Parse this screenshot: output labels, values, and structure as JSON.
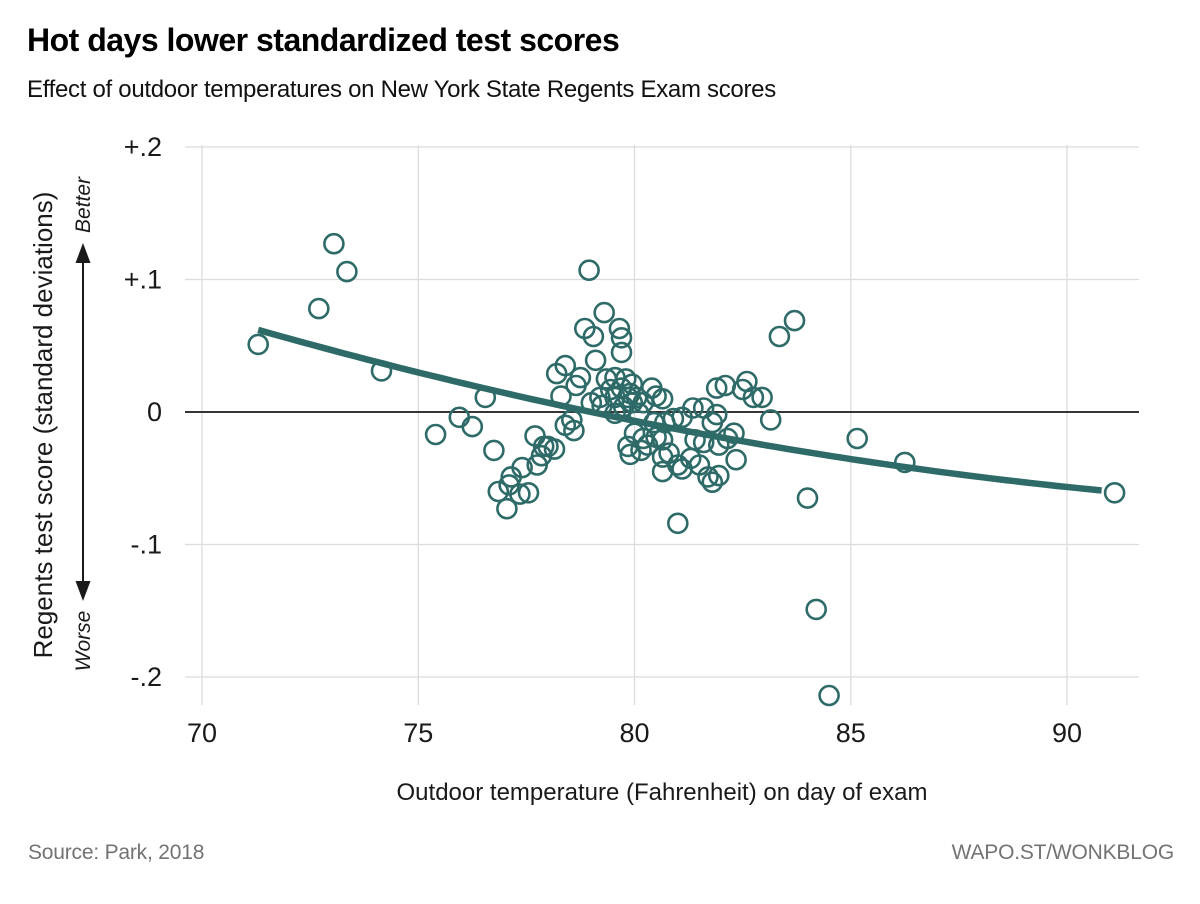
{
  "header": {
    "title": "Hot days lower standardized test scores",
    "subtitle": "Effect of outdoor temperatures on New York State Regents Exam scores"
  },
  "footer": {
    "source": "Source: Park, 2018",
    "credit": "WAPO.ST/WONKBLOG"
  },
  "chart_data": {
    "type": "scatter",
    "title": "Hot days lower standardized test scores",
    "subtitle": "Effect of outdoor temperatures on New York State Regents Exam scores",
    "xlabel": "Outdoor temperature (Fahrenheit) on day of exam",
    "ylabel": "Regents test score (standard deviations)",
    "y_direction_labels": {
      "up": "Better",
      "down": "Worse"
    },
    "x_ticks": [
      70,
      75,
      80,
      85,
      90
    ],
    "y_ticks": [
      {
        "value": 0.2,
        "label": "+.2"
      },
      {
        "value": 0.1,
        "label": "+.1"
      },
      {
        "value": 0,
        "label": "0"
      },
      {
        "value": -0.1,
        "label": "-.1"
      },
      {
        "value": -0.2,
        "label": "-.2"
      }
    ],
    "xlim": [
      69.6,
      91.7
    ],
    "ylim": [
      -0.225,
      0.2
    ],
    "grid": true,
    "zero_line": true,
    "legend": "none",
    "points": [
      [
        73.05,
        0.127
      ],
      [
        73.35,
        0.106
      ],
      [
        72.7,
        0.078
      ],
      [
        71.3,
        0.051
      ],
      [
        74.15,
        0.031
      ],
      [
        76.55,
        0.011
      ],
      [
        75.95,
        -0.004
      ],
      [
        75.4,
        -0.017
      ],
      [
        76.25,
        -0.011
      ],
      [
        76.75,
        -0.029
      ],
      [
        77.4,
        -0.042
      ],
      [
        77.1,
        -0.055
      ],
      [
        77.15,
        -0.049
      ],
      [
        77.35,
        -0.062
      ],
      [
        77.55,
        -0.061
      ],
      [
        77.05,
        -0.073
      ],
      [
        76.85,
        -0.06
      ],
      [
        77.7,
        -0.018
      ],
      [
        77.9,
        -0.026
      ],
      [
        78.0,
        -0.026
      ],
      [
        78.15,
        -0.028
      ],
      [
        77.85,
        -0.033
      ],
      [
        77.75,
        -0.04
      ],
      [
        78.6,
        -0.014
      ],
      [
        78.95,
        0.107
      ],
      [
        79.3,
        0.075
      ],
      [
        78.85,
        0.063
      ],
      [
        79.05,
        0.057
      ],
      [
        79.65,
        0.063
      ],
      [
        79.7,
        0.056
      ],
      [
        79.7,
        0.045
      ],
      [
        79.1,
        0.039
      ],
      [
        78.4,
        0.035
      ],
      [
        78.2,
        0.029
      ],
      [
        78.75,
        0.026
      ],
      [
        78.65,
        0.02
      ],
      [
        78.3,
        0.012
      ],
      [
        79.35,
        0.025
      ],
      [
        79.55,
        0.026
      ],
      [
        79.8,
        0.025
      ],
      [
        79.95,
        0.021
      ],
      [
        79.7,
        0.018
      ],
      [
        79.45,
        0.017
      ],
      [
        79.2,
        0.011
      ],
      [
        79.55,
        0.011
      ],
      [
        79.85,
        0.011
      ],
      [
        80.05,
        0.011
      ],
      [
        80.4,
        0.018
      ],
      [
        80.5,
        0.012
      ],
      [
        80.65,
        0.01
      ],
      [
        80.2,
        0.007
      ],
      [
        79.75,
        0.004
      ],
      [
        79.25,
        0.005
      ],
      [
        79.0,
        0.007
      ],
      [
        81.9,
        0.018
      ],
      [
        79.9,
        0.014
      ],
      [
        79.95,
        0.007
      ],
      [
        78.55,
        -0.006
      ],
      [
        78.4,
        -0.01
      ],
      [
        79.55,
        -0.001
      ],
      [
        80.1,
        -0.001
      ],
      [
        80.45,
        -0.008
      ],
      [
        80.7,
        -0.008
      ],
      [
        80.9,
        -0.005
      ],
      [
        81.1,
        -0.004
      ],
      [
        81.35,
        0.003
      ],
      [
        81.6,
        0.003
      ],
      [
        81.9,
        -0.002
      ],
      [
        81.8,
        -0.008
      ],
      [
        80.0,
        -0.016
      ],
      [
        80.2,
        -0.02
      ],
      [
        80.5,
        -0.019
      ],
      [
        80.65,
        -0.021
      ],
      [
        81.4,
        -0.021
      ],
      [
        81.6,
        -0.023
      ],
      [
        79.85,
        -0.026
      ],
      [
        79.9,
        -0.032
      ],
      [
        80.15,
        -0.029
      ],
      [
        80.3,
        -0.025
      ],
      [
        80.65,
        -0.034
      ],
      [
        80.65,
        -0.045
      ],
      [
        80.8,
        -0.031
      ],
      [
        81.0,
        -0.04
      ],
      [
        81.1,
        -0.043
      ],
      [
        81.3,
        -0.035
      ],
      [
        81.5,
        -0.04
      ],
      [
        81.7,
        -0.049
      ],
      [
        81.8,
        -0.053
      ],
      [
        81.95,
        -0.048
      ],
      [
        81.0,
        -0.084
      ],
      [
        81.95,
        -0.025
      ],
      [
        82.15,
        -0.02
      ],
      [
        82.3,
        -0.016
      ],
      [
        82.35,
        -0.036
      ],
      [
        82.1,
        0.02
      ],
      [
        82.6,
        0.023
      ],
      [
        82.5,
        0.017
      ],
      [
        82.75,
        0.011
      ],
      [
        82.95,
        0.011
      ],
      [
        83.15,
        -0.006
      ],
      [
        83.35,
        0.057
      ],
      [
        83.7,
        0.069
      ],
      [
        84.0,
        -0.065
      ],
      [
        84.2,
        -0.149
      ],
      [
        84.5,
        -0.214
      ],
      [
        85.15,
        -0.02
      ],
      [
        86.25,
        -0.038
      ],
      [
        91.1,
        -0.061
      ]
    ],
    "trend": {
      "type": "quadratic",
      "description": "fitted curve of test score vs temperature",
      "coef_t2": 0.000155,
      "coef_t": -0.03134,
      "intercept": 1.5085,
      "t_min": 71.3,
      "t_max": 91.0
    },
    "colors": {
      "accent_teal": "#2e6b68",
      "grid": "#dcdcdc",
      "zero_line": "#1a1a1a",
      "text": "#1a1a1a",
      "muted_text": "#737373"
    }
  }
}
